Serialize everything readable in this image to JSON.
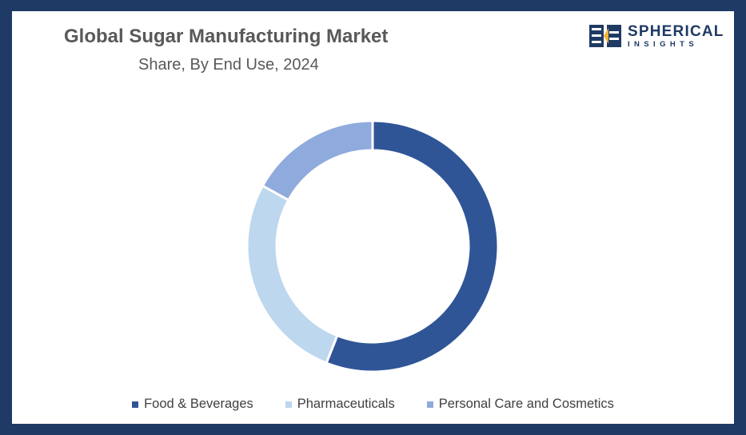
{
  "header": {
    "title": "Global Sugar Manufacturing Market",
    "subtitle": "Share, By End Use, 2024"
  },
  "logo": {
    "name": "SPHERICAL",
    "tagline": "INSIGHTS",
    "color": "#1f3a64"
  },
  "colors": {
    "frame": "#1f3a64",
    "background": "#ffffff"
  },
  "chart_data": {
    "type": "pie",
    "variant": "donut",
    "title": "Global Sugar Manufacturing Market",
    "subtitle": "Share, By End Use, 2024",
    "categories": [
      "Food & Beverages",
      "Pharmaceuticals",
      "Personal Care and Cosmetics"
    ],
    "values": [
      56,
      27,
      17
    ],
    "colors": [
      "#2f5597",
      "#bdd7ee",
      "#8faadc"
    ],
    "legend_position": "bottom",
    "start_angle_deg": 0,
    "direction": "clockwise"
  }
}
